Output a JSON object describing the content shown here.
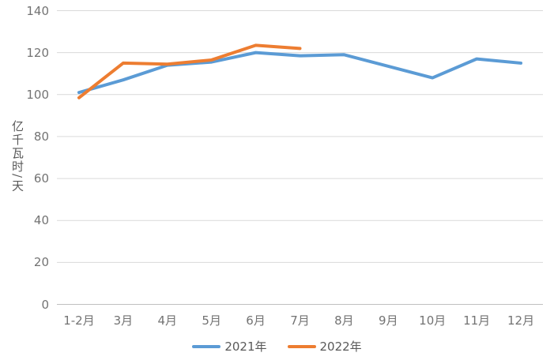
{
  "chart_data": {
    "type": "line",
    "title": "",
    "xlabel": "",
    "ylabel": "亿千瓦时/天",
    "ylim": [
      0,
      140
    ],
    "yticks": [
      0,
      20,
      40,
      60,
      80,
      100,
      120,
      140
    ],
    "categories": [
      "1-2月",
      "3月",
      "4月",
      "5月",
      "6月",
      "7月",
      "8月",
      "9月",
      "10月",
      "11月",
      "12月"
    ],
    "series": [
      {
        "name": "2021年",
        "color": "#5B9BD5",
        "values": [
          101,
          107,
          114,
          115.5,
          120,
          118.5,
          119,
          113.5,
          108,
          117,
          115
        ]
      },
      {
        "name": "2022年",
        "color": "#ED7D31",
        "values": [
          98.5,
          115,
          114.5,
          116.5,
          123.5,
          122
        ]
      }
    ],
    "grid": true,
    "legend_position": "bottom",
    "gridline_color": "#D9D9D9",
    "axis_color": "#BFBFBF",
    "tick_label_color": "#737373"
  }
}
